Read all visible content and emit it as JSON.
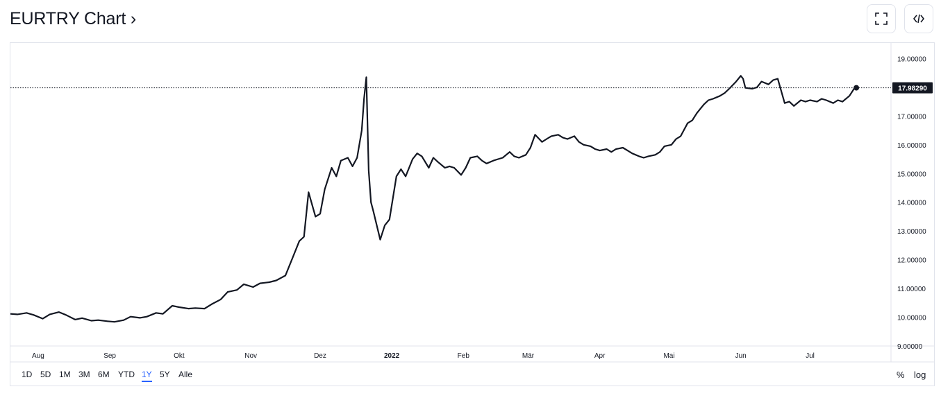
{
  "header": {
    "title": "EURTRY Chart ›",
    "fullscreen_icon": "fullscreen-icon",
    "embed_icon": "code-embed-icon"
  },
  "toolbar": {
    "timeframes": [
      "1D",
      "5D",
      "1M",
      "3M",
      "6M",
      "YTD",
      "1Y",
      "5Y",
      "Alle"
    ],
    "active": "1Y",
    "percent_label": "%",
    "log_label": "log"
  },
  "colors": {
    "line": "#131722",
    "grid": "#e0e3eb",
    "active_tab": "#2962ff",
    "price_tag_bg": "#131722"
  },
  "chart_data": {
    "type": "line",
    "symbol": "EURTRY",
    "ylim": [
      9.0,
      19.3
    ],
    "y_ticks": [
      9.0,
      10.0,
      11.0,
      12.0,
      13.0,
      14.0,
      15.0,
      16.0,
      17.0,
      18.0,
      19.0
    ],
    "y_tick_labels": [
      "9.00000",
      "10.00000",
      "11.00000",
      "12.00000",
      "13.00000",
      "14.00000",
      "15.00000",
      "16.00000",
      "17.00000",
      "",
      "19.00000"
    ],
    "last_price_label": "17.98290",
    "last_price": 17.9829,
    "x_labels": [
      {
        "label": "Aug",
        "date": "2021-08-01"
      },
      {
        "label": "Sep",
        "date": "2021-09-01"
      },
      {
        "label": "Okt",
        "date": "2021-10-01"
      },
      {
        "label": "Nov",
        "date": "2021-11-01"
      },
      {
        "label": "Dez",
        "date": "2021-12-01"
      },
      {
        "label": "2022",
        "date": "2022-01-01"
      },
      {
        "label": "Feb",
        "date": "2022-02-01"
      },
      {
        "label": "Mär",
        "date": "2022-03-01"
      },
      {
        "label": "Apr",
        "date": "2022-04-01"
      },
      {
        "label": "Mai",
        "date": "2022-05-01"
      },
      {
        "label": "Jun",
        "date": "2022-06-01"
      },
      {
        "label": "Jul",
        "date": "2022-07-01"
      }
    ],
    "x_range": [
      "2021-07-20",
      "2022-08-05"
    ],
    "series": [
      {
        "points": [
          [
            "2021-07-20",
            10.12
          ],
          [
            "2021-07-23",
            10.1
          ],
          [
            "2021-07-27",
            10.15
          ],
          [
            "2021-07-30",
            10.08
          ],
          [
            "2021-08-03",
            9.95
          ],
          [
            "2021-08-06",
            10.1
          ],
          [
            "2021-08-10",
            10.18
          ],
          [
            "2021-08-13",
            10.08
          ],
          [
            "2021-08-17",
            9.92
          ],
          [
            "2021-08-20",
            9.97
          ],
          [
            "2021-08-24",
            9.88
          ],
          [
            "2021-08-27",
            9.9
          ],
          [
            "2021-08-31",
            9.86
          ],
          [
            "2021-09-03",
            9.84
          ],
          [
            "2021-09-07",
            9.9
          ],
          [
            "2021-09-10",
            10.02
          ],
          [
            "2021-09-14",
            9.98
          ],
          [
            "2021-09-17",
            10.02
          ],
          [
            "2021-09-21",
            10.15
          ],
          [
            "2021-09-24",
            10.12
          ],
          [
            "2021-09-28",
            10.4
          ],
          [
            "2021-10-01",
            10.35
          ],
          [
            "2021-10-05",
            10.3
          ],
          [
            "2021-10-08",
            10.32
          ],
          [
            "2021-10-12",
            10.3
          ],
          [
            "2021-10-15",
            10.45
          ],
          [
            "2021-10-19",
            10.62
          ],
          [
            "2021-10-22",
            10.88
          ],
          [
            "2021-10-26",
            10.95
          ],
          [
            "2021-10-29",
            11.15
          ],
          [
            "2021-11-02",
            11.05
          ],
          [
            "2021-11-05",
            11.18
          ],
          [
            "2021-11-09",
            11.22
          ],
          [
            "2021-11-12",
            11.28
          ],
          [
            "2021-11-16",
            11.45
          ],
          [
            "2021-11-19",
            12.05
          ],
          [
            "2021-11-22",
            12.65
          ],
          [
            "2021-11-24",
            12.8
          ],
          [
            "2021-11-26",
            14.35
          ],
          [
            "2021-11-29",
            13.5
          ],
          [
            "2021-12-01",
            13.6
          ],
          [
            "2021-12-03",
            14.45
          ],
          [
            "2021-12-06",
            15.2
          ],
          [
            "2021-12-08",
            14.9
          ],
          [
            "2021-12-10",
            15.45
          ],
          [
            "2021-12-13",
            15.55
          ],
          [
            "2021-12-15",
            15.25
          ],
          [
            "2021-12-17",
            15.55
          ],
          [
            "2021-12-19",
            16.5
          ],
          [
            "2021-12-20",
            17.6
          ],
          [
            "2021-12-21",
            18.35
          ],
          [
            "2021-12-22",
            15.1
          ],
          [
            "2021-12-23",
            14.0
          ],
          [
            "2021-12-24",
            13.7
          ],
          [
            "2021-12-27",
            12.7
          ],
          [
            "2021-12-29",
            13.2
          ],
          [
            "2021-12-31",
            13.4
          ],
          [
            "2022-01-03",
            14.9
          ],
          [
            "2022-01-05",
            15.15
          ],
          [
            "2022-01-07",
            14.9
          ],
          [
            "2022-01-10",
            15.5
          ],
          [
            "2022-01-12",
            15.7
          ],
          [
            "2022-01-14",
            15.6
          ],
          [
            "2022-01-17",
            15.2
          ],
          [
            "2022-01-19",
            15.55
          ],
          [
            "2022-01-21",
            15.4
          ],
          [
            "2022-01-24",
            15.2
          ],
          [
            "2022-01-26",
            15.25
          ],
          [
            "2022-01-28",
            15.2
          ],
          [
            "2022-01-31",
            14.95
          ],
          [
            "2022-02-02",
            15.2
          ],
          [
            "2022-02-04",
            15.55
          ],
          [
            "2022-02-07",
            15.6
          ],
          [
            "2022-02-09",
            15.45
          ],
          [
            "2022-02-11",
            15.35
          ],
          [
            "2022-02-14",
            15.45
          ],
          [
            "2022-02-16",
            15.5
          ],
          [
            "2022-02-18",
            15.55
          ],
          [
            "2022-02-21",
            15.75
          ],
          [
            "2022-02-23",
            15.6
          ],
          [
            "2022-02-25",
            15.55
          ],
          [
            "2022-02-28",
            15.65
          ],
          [
            "2022-03-02",
            15.9
          ],
          [
            "2022-03-04",
            16.35
          ],
          [
            "2022-03-07",
            16.1
          ],
          [
            "2022-03-09",
            16.2
          ],
          [
            "2022-03-11",
            16.3
          ],
          [
            "2022-03-14",
            16.35
          ],
          [
            "2022-03-16",
            16.25
          ],
          [
            "2022-03-18",
            16.2
          ],
          [
            "2022-03-21",
            16.3
          ],
          [
            "2022-03-23",
            16.1
          ],
          [
            "2022-03-25",
            16.0
          ],
          [
            "2022-03-28",
            15.95
          ],
          [
            "2022-03-30",
            15.85
          ],
          [
            "2022-04-01",
            15.8
          ],
          [
            "2022-04-04",
            15.85
          ],
          [
            "2022-04-06",
            15.75
          ],
          [
            "2022-04-08",
            15.85
          ],
          [
            "2022-04-11",
            15.9
          ],
          [
            "2022-04-13",
            15.8
          ],
          [
            "2022-04-15",
            15.7
          ],
          [
            "2022-04-18",
            15.6
          ],
          [
            "2022-04-20",
            15.55
          ],
          [
            "2022-04-22",
            15.6
          ],
          [
            "2022-04-25",
            15.65
          ],
          [
            "2022-04-27",
            15.75
          ],
          [
            "2022-04-29",
            15.95
          ],
          [
            "2022-05-02",
            16.0
          ],
          [
            "2022-05-04",
            16.2
          ],
          [
            "2022-05-06",
            16.3
          ],
          [
            "2022-05-09",
            16.75
          ],
          [
            "2022-05-11",
            16.85
          ],
          [
            "2022-05-13",
            17.1
          ],
          [
            "2022-05-16",
            17.4
          ],
          [
            "2022-05-18",
            17.55
          ],
          [
            "2022-05-20",
            17.6
          ],
          [
            "2022-05-23",
            17.7
          ],
          [
            "2022-05-25",
            17.8
          ],
          [
            "2022-05-27",
            17.95
          ],
          [
            "2022-05-30",
            18.2
          ],
          [
            "2022-06-01",
            18.4
          ],
          [
            "2022-06-02",
            18.3
          ],
          [
            "2022-06-03",
            17.98
          ],
          [
            "2022-06-06",
            17.95
          ],
          [
            "2022-06-08",
            18.0
          ],
          [
            "2022-06-10",
            18.2
          ],
          [
            "2022-06-13",
            18.1
          ],
          [
            "2022-06-15",
            18.25
          ],
          [
            "2022-06-17",
            18.3
          ],
          [
            "2022-06-20",
            17.45
          ],
          [
            "2022-06-22",
            17.5
          ],
          [
            "2022-06-24",
            17.35
          ],
          [
            "2022-06-27",
            17.55
          ],
          [
            "2022-06-29",
            17.5
          ],
          [
            "2022-07-01",
            17.55
          ],
          [
            "2022-07-04",
            17.5
          ],
          [
            "2022-07-06",
            17.6
          ],
          [
            "2022-07-08",
            17.55
          ],
          [
            "2022-07-11",
            17.45
          ],
          [
            "2022-07-13",
            17.55
          ],
          [
            "2022-07-15",
            17.5
          ],
          [
            "2022-07-18",
            17.7
          ],
          [
            "2022-07-20",
            17.95
          ],
          [
            "2022-07-21",
            17.9829
          ]
        ]
      }
    ],
    "grid": false,
    "price_line": "dotted"
  }
}
